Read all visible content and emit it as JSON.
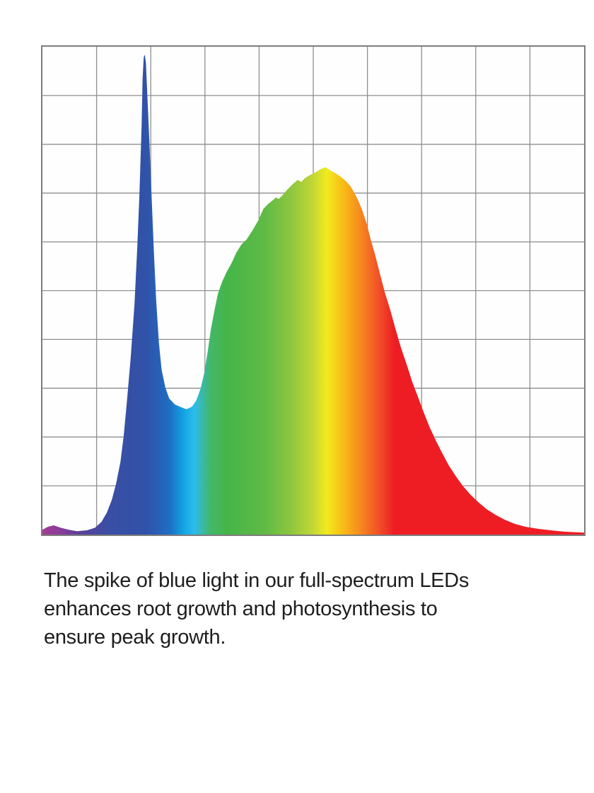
{
  "caption": {
    "lines": [
      "The spike of blue light in our full-spectrum LEDs",
      "enhances root growth and photosynthesis to",
      "ensure peak growth."
    ]
  },
  "chart_data": {
    "type": "area",
    "title": "",
    "xlabel": "",
    "ylabel": "",
    "description": "Spectral power distribution of full-spectrum LED; sharp blue spike near left, broad green-yellow-red mound to the right; no axis tick labels shown",
    "grid": {
      "columns": 10,
      "rows": 10,
      "line_color": "#8f8f8f",
      "border_color": "#7d7d7d",
      "background": "#fefefe"
    },
    "x_range_percent": [
      0,
      100
    ],
    "intensity_range_percent": [
      0,
      100
    ],
    "blue_spike_peak": {
      "x_percent": 18.9,
      "intensity_percent": 98.4
    },
    "valley": {
      "x_percent": 26.6,
      "intensity_percent": 25.7
    },
    "broad_peak": {
      "x_percent": 52.3,
      "intensity_percent": 75.3
    },
    "points": [
      [
        0,
        1.0
      ],
      [
        1.0,
        1.6
      ],
      [
        2.1,
        1.9
      ],
      [
        3.4,
        1.4
      ],
      [
        4.8,
        1.0
      ],
      [
        6.4,
        0.7
      ],
      [
        8.3,
        0.9
      ],
      [
        9.7,
        1.4
      ],
      [
        10.9,
        2.6
      ],
      [
        11.9,
        4.5
      ],
      [
        12.8,
        7.1
      ],
      [
        13.6,
        10.4
      ],
      [
        14.4,
        14.9
      ],
      [
        15.0,
        20.2
      ],
      [
        15.6,
        27.3
      ],
      [
        16.3,
        36.3
      ],
      [
        17.0,
        47.3
      ],
      [
        17.5,
        58.8
      ],
      [
        17.9,
        69.4
      ],
      [
        18.3,
        83.4
      ],
      [
        18.5,
        93.5
      ],
      [
        18.7,
        97.8
      ],
      [
        18.9,
        98.4
      ],
      [
        19.1,
        96.7
      ],
      [
        19.4,
        89.2
      ],
      [
        19.8,
        79.0
      ],
      [
        20.2,
        68.2
      ],
      [
        20.6,
        57.4
      ],
      [
        21.0,
        48.0
      ],
      [
        21.5,
        39.3
      ],
      [
        22.0,
        33.8
      ],
      [
        22.7,
        30.1
      ],
      [
        23.4,
        27.9
      ],
      [
        24.4,
        26.7
      ],
      [
        25.4,
        26.2
      ],
      [
        26.6,
        25.7
      ],
      [
        27.6,
        26.2
      ],
      [
        28.4,
        27.5
      ],
      [
        29.2,
        29.9
      ],
      [
        29.9,
        33.2
      ],
      [
        30.5,
        37.4
      ],
      [
        31.1,
        42.1
      ],
      [
        31.8,
        46.2
      ],
      [
        32.4,
        49.4
      ],
      [
        33.2,
        51.9
      ],
      [
        34.0,
        53.8
      ],
      [
        34.9,
        55.6
      ],
      [
        35.8,
        57.8
      ],
      [
        36.7,
        59.4
      ],
      [
        37.7,
        60.5
      ],
      [
        38.8,
        62.4
      ],
      [
        39.9,
        64.5
      ],
      [
        40.8,
        66.8
      ],
      [
        41.7,
        67.8
      ],
      [
        42.5,
        68.5
      ],
      [
        43.1,
        69.1
      ],
      [
        43.6,
        68.8
      ],
      [
        44.2,
        69.4
      ],
      [
        45.2,
        70.7
      ],
      [
        46.2,
        71.8
      ],
      [
        47.1,
        72.7
      ],
      [
        47.8,
        72.3
      ],
      [
        48.5,
        73.1
      ],
      [
        49.4,
        73.7
      ],
      [
        50.5,
        74.3
      ],
      [
        51.5,
        75.0
      ],
      [
        52.3,
        75.3
      ],
      [
        53.2,
        74.6
      ],
      [
        54.2,
        74.0
      ],
      [
        55.0,
        73.4
      ],
      [
        56.0,
        72.5
      ],
      [
        56.8,
        71.5
      ],
      [
        57.5,
        70.2
      ],
      [
        58.3,
        68.5
      ],
      [
        59.1,
        66.3
      ],
      [
        59.9,
        63.6
      ],
      [
        60.6,
        60.5
      ],
      [
        61.4,
        57.4
      ],
      [
        62.3,
        53.5
      ],
      [
        63.2,
        49.7
      ],
      [
        64.2,
        46.1
      ],
      [
        65.2,
        42.1
      ],
      [
        66.2,
        38.3
      ],
      [
        67.3,
        34.7
      ],
      [
        68.3,
        31.2
      ],
      [
        69.4,
        28.0
      ],
      [
        70.4,
        25.0
      ],
      [
        71.5,
        22.0
      ],
      [
        72.7,
        19.1
      ],
      [
        73.9,
        16.5
      ],
      [
        75.0,
        14.2
      ],
      [
        76.3,
        12.0
      ],
      [
        77.6,
        10.0
      ],
      [
        79.0,
        8.2
      ],
      [
        80.5,
        6.6
      ],
      [
        82.0,
        5.2
      ],
      [
        83.7,
        4.0
      ],
      [
        85.4,
        3.0
      ],
      [
        87.2,
        2.2
      ],
      [
        89.2,
        1.6
      ],
      [
        91.4,
        1.2
      ],
      [
        93.7,
        0.9
      ],
      [
        96.3,
        0.6
      ],
      [
        100,
        0.4
      ]
    ],
    "gradient_stops": [
      [
        0,
        "#A23C96"
      ],
      [
        3,
        "#8C3D9A"
      ],
      [
        7,
        "#5A4099"
      ],
      [
        12,
        "#3A4EA3"
      ],
      [
        19,
        "#3052A8"
      ],
      [
        23.5,
        "#1E6EC4"
      ],
      [
        26,
        "#12A3E2"
      ],
      [
        28,
        "#2CBCEC"
      ],
      [
        31,
        "#43B768"
      ],
      [
        34,
        "#45B549"
      ],
      [
        41,
        "#5FBA45"
      ],
      [
        46,
        "#8FC73E"
      ],
      [
        50,
        "#C3D735"
      ],
      [
        52.5,
        "#F2EA1E"
      ],
      [
        55.5,
        "#F8BC16"
      ],
      [
        58.5,
        "#F68C1E"
      ],
      [
        62,
        "#F15127"
      ],
      [
        65,
        "#EE1D24"
      ],
      [
        100,
        "#EE1D24"
      ]
    ],
    "legend": "none",
    "axis_tick_labels": "none"
  }
}
